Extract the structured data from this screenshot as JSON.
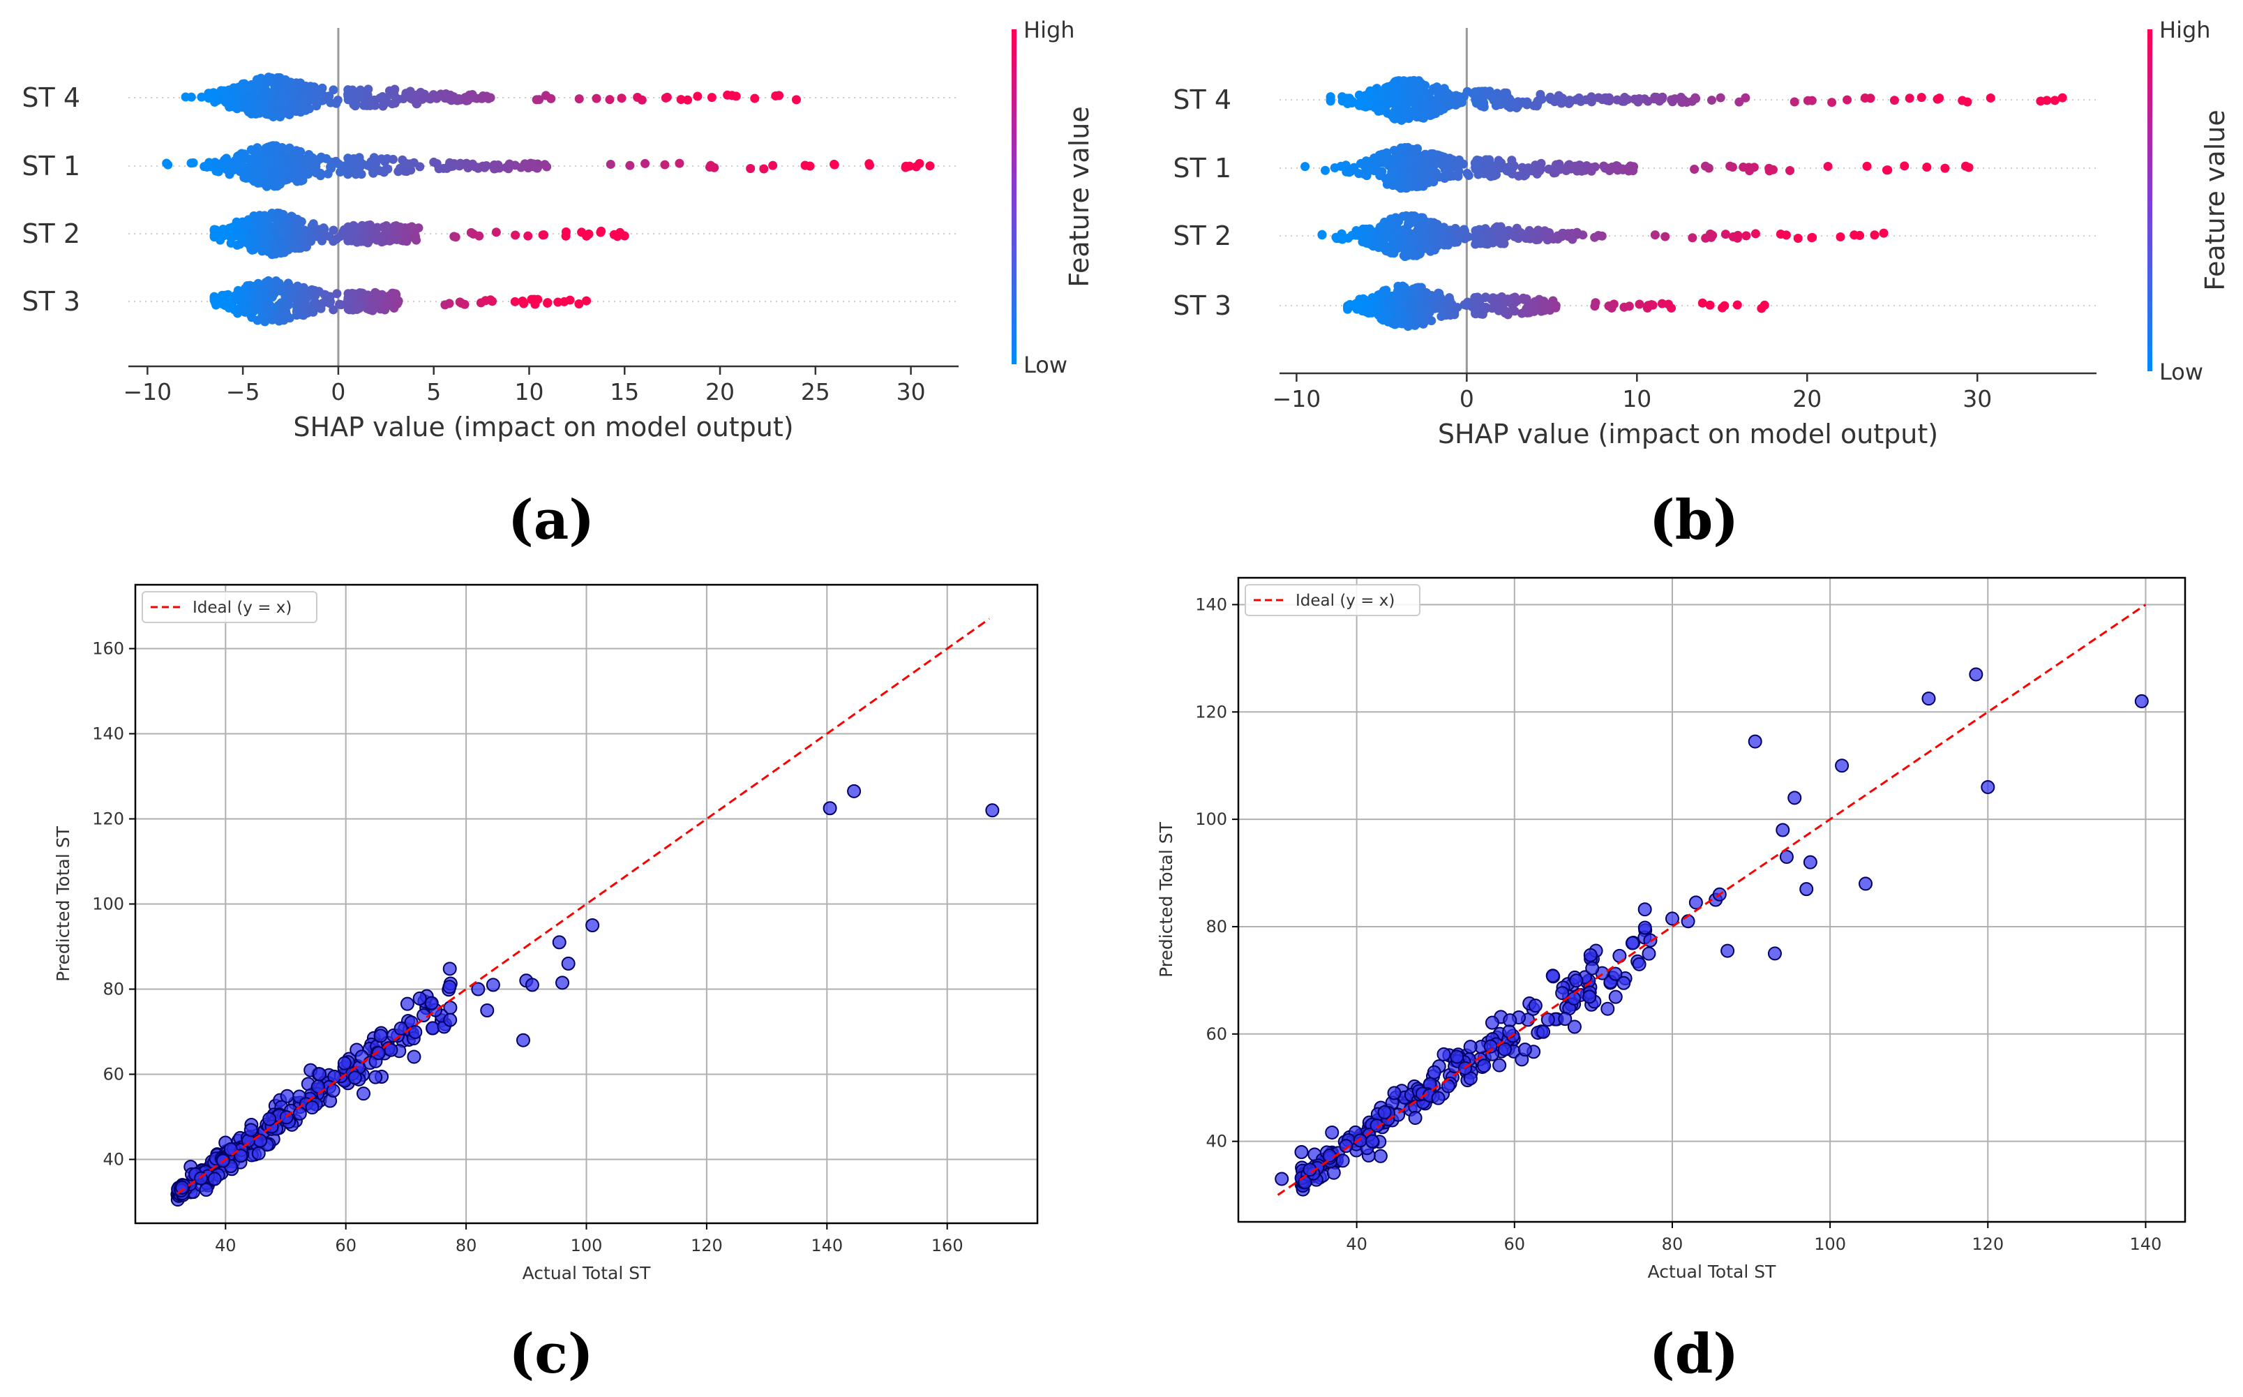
{
  "chart_data": [
    {
      "id": "a",
      "type": "beeswarm",
      "panel_label": "(a)",
      "xlabel": "SHAP value (impact on model output)",
      "xlim": [
        -11,
        32.5
      ],
      "xticks": [
        -10,
        -5,
        0,
        5,
        10,
        15,
        20,
        25,
        30
      ],
      "xtick_labels": [
        "−10",
        "−5",
        "0",
        "5",
        "10",
        "15",
        "20",
        "25",
        "30"
      ],
      "features": [
        "ST 4",
        "ST 1",
        "ST 2",
        "ST 3"
      ],
      "feature_ranges": [
        [
          -8,
          24
        ],
        [
          -9,
          31
        ],
        [
          -6.5,
          15
        ],
        [
          -6.5,
          13
        ]
      ],
      "colorbar": {
        "title": "Feature value",
        "high": "High",
        "low": "Low",
        "colors": [
          "#008bfb",
          "#ff0052"
        ]
      }
    },
    {
      "id": "b",
      "type": "beeswarm",
      "panel_label": "(b)",
      "xlabel": "SHAP value (impact on model output)",
      "xlim": [
        -11,
        37
      ],
      "xticks": [
        -10,
        0,
        10,
        20,
        30
      ],
      "xtick_labels": [
        "−10",
        "0",
        "10",
        "20",
        "30"
      ],
      "features": [
        "ST 4",
        "ST 1",
        "ST 2",
        "ST 3"
      ],
      "feature_ranges": [
        [
          -8,
          35
        ],
        [
          -9.5,
          29.5
        ],
        [
          -8.5,
          24.5
        ],
        [
          -7,
          17.5
        ]
      ],
      "colorbar": {
        "title": "Feature value",
        "high": "High",
        "low": "Low",
        "colors": [
          "#008bfb",
          "#ff0052"
        ]
      }
    },
    {
      "id": "c",
      "type": "scatter",
      "panel_label": "(c)",
      "xlabel": "Actual Total ST",
      "ylabel": "Predicted Total ST",
      "xlim": [
        25,
        175
      ],
      "ylim": [
        25,
        175
      ],
      "xticks": [
        40,
        60,
        80,
        100,
        120,
        140,
        160
      ],
      "yticks": [
        40,
        60,
        80,
        100,
        120,
        140,
        160
      ],
      "legend": "Ideal (y = x)",
      "ideal_line": [
        [
          32,
          32
        ],
        [
          167,
          167
        ]
      ],
      "highlight_points": [
        [
          101,
          95
        ],
        [
          95.5,
          91
        ],
        [
          97,
          86
        ],
        [
          96,
          81.5
        ],
        [
          90,
          82
        ],
        [
          91,
          81
        ],
        [
          89.5,
          68
        ],
        [
          83.5,
          75
        ],
        [
          84.5,
          81
        ],
        [
          82,
          80
        ],
        [
          140.5,
          122.5
        ],
        [
          144.5,
          126.5
        ],
        [
          167.5,
          122
        ]
      ],
      "cluster_range": [
        32,
        78
      ],
      "point_color": "#3333ee",
      "line_color": "#ff0000"
    },
    {
      "id": "d",
      "type": "scatter",
      "panel_label": "(d)",
      "xlabel": "Actual Total ST",
      "ylabel": "Predicted Total ST",
      "xlim": [
        25,
        145
      ],
      "ylim": [
        25,
        145
      ],
      "xticks": [
        40,
        60,
        80,
        100,
        120,
        140
      ],
      "yticks": [
        40,
        60,
        80,
        100,
        120,
        140
      ],
      "legend": "Ideal (y = x)",
      "ideal_line": [
        [
          30,
          30
        ],
        [
          140,
          140
        ]
      ],
      "highlight_points": [
        [
          30.5,
          33
        ],
        [
          33,
          38
        ],
        [
          80,
          81.5
        ],
        [
          82,
          81
        ],
        [
          83,
          84.5
        ],
        [
          85.5,
          85
        ],
        [
          86,
          86
        ],
        [
          87,
          75.5
        ],
        [
          90.5,
          114.5
        ],
        [
          93,
          75
        ],
        [
          94,
          98
        ],
        [
          94.5,
          93
        ],
        [
          95.5,
          104
        ],
        [
          97,
          87
        ],
        [
          97.5,
          92
        ],
        [
          101.5,
          110
        ],
        [
          104.5,
          88
        ],
        [
          112.5,
          122.5
        ],
        [
          118.5,
          127
        ],
        [
          120,
          106
        ],
        [
          139.5,
          122
        ]
      ],
      "cluster_range": [
        33,
        78
      ],
      "point_color": "#3333ee",
      "line_color": "#ff0000"
    }
  ]
}
